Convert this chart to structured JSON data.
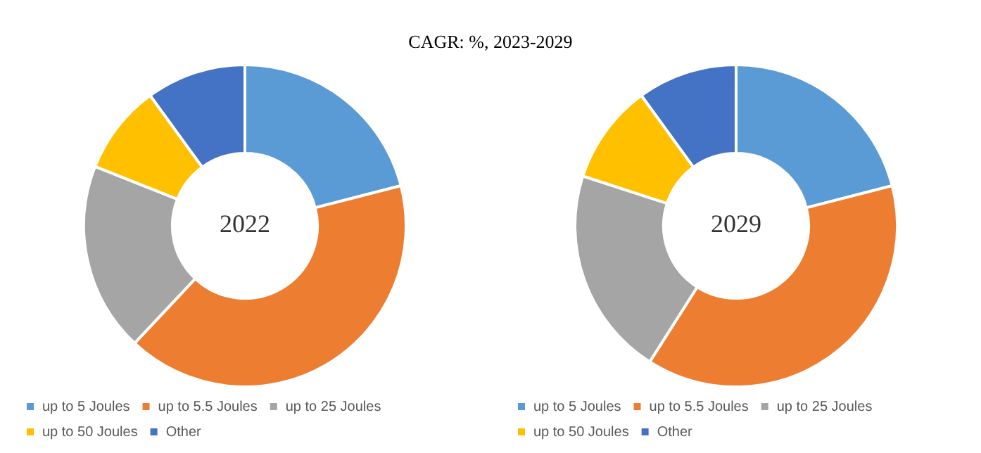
{
  "chart_data": [
    {
      "type": "donut",
      "title": "CAGR: %, 2023-2029",
      "annotations": [
        "2022"
      ],
      "categories": [
        "up to 5 Joules",
        "up to 5.5 Joules",
        "up to 25 Joules",
        "up to 50 Joules",
        "Other"
      ],
      "values": [
        21,
        41,
        19,
        9,
        10
      ],
      "colors": [
        "#5b9bd5",
        "#ed7d31",
        "#a5a5a5",
        "#ffc000",
        "#4472c4"
      ],
      "legend": "bottom left"
    },
    {
      "type": "donut",
      "annotations": [
        "2029"
      ],
      "categories": [
        "up to 5 Joules",
        "up to 5.5 Joules",
        "up to 25 Joules",
        "up to 50 Joules",
        "Other"
      ],
      "values": [
        21,
        38,
        21,
        10,
        10
      ],
      "colors": [
        "#5b9bd5",
        "#ed7d31",
        "#a5a5a5",
        "#ffc000",
        "#4472c4"
      ],
      "legend": "bottom left"
    }
  ]
}
